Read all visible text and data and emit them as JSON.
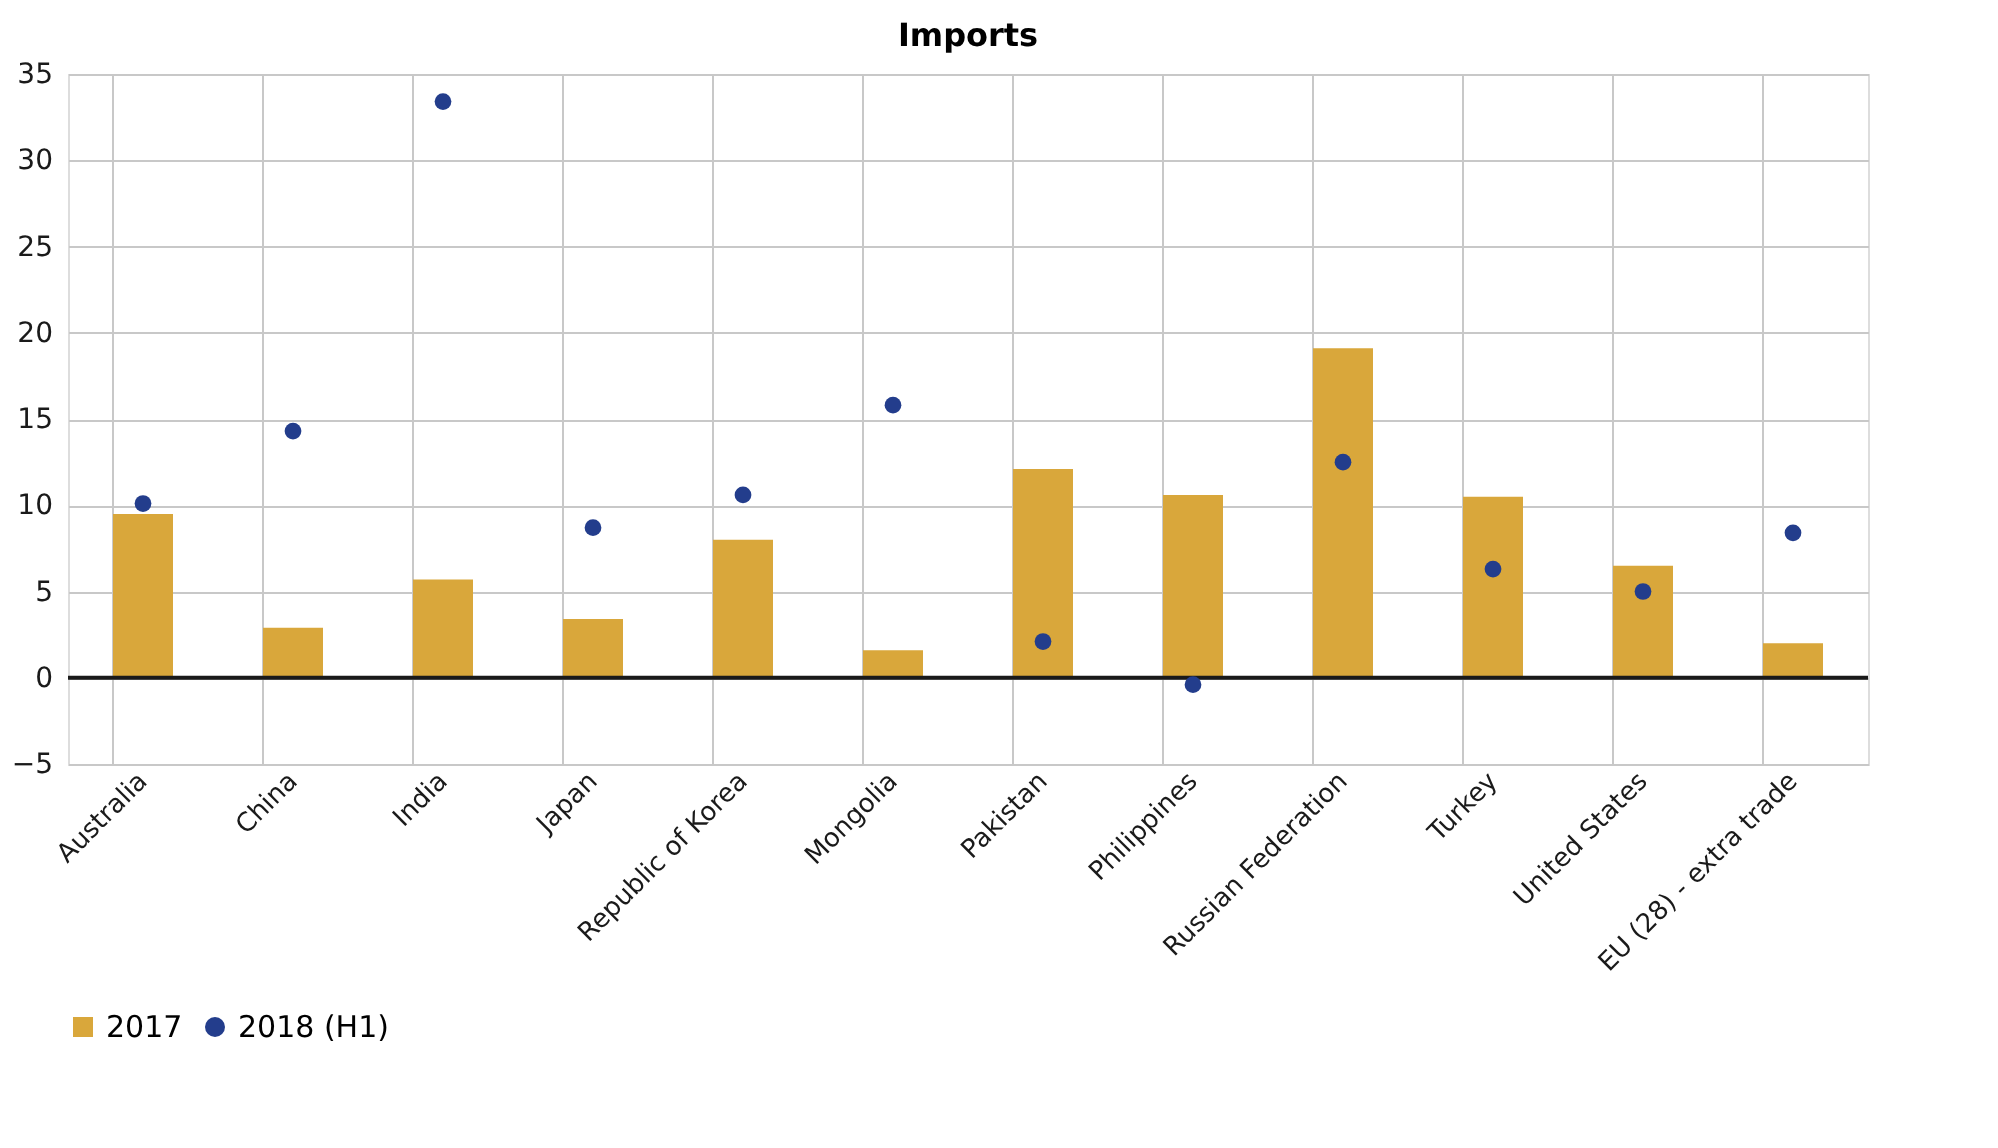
{
  "chart_data": {
    "type": "bar",
    "title": "Imports",
    "categories": [
      "Australia",
      "China",
      "India",
      "Japan",
      "Republic of Korea",
      "Mongolia",
      "Pakistan",
      "Philippines",
      "Russian Federation",
      "Turkey",
      "United States",
      "EU (28) - extra trade"
    ],
    "series": [
      {
        "name": "2017",
        "color": "#d9a73b",
        "values": [
          9.5,
          2.9,
          5.7,
          3.4,
          8.0,
          1.6,
          12.1,
          10.6,
          19.1,
          10.5,
          6.5,
          2.0
        ]
      },
      {
        "name": "2018 (H1)",
        "type": "scatter",
        "color": "#233d8c",
        "values": [
          10.1,
          14.3,
          33.4,
          8.7,
          10.6,
          15.8,
          2.1,
          -0.4,
          12.5,
          6.3,
          5.0,
          8.4
        ]
      }
    ],
    "ylim": [
      -5,
      35
    ],
    "yticks": [
      -5,
      0,
      5,
      10,
      15,
      20,
      25,
      30,
      35
    ],
    "ref_lines": [
      {
        "axis": "y",
        "value": 0,
        "color": "#1a1a1a"
      }
    ],
    "grid": true,
    "legend": "bottom",
    "marker": "circle"
  }
}
